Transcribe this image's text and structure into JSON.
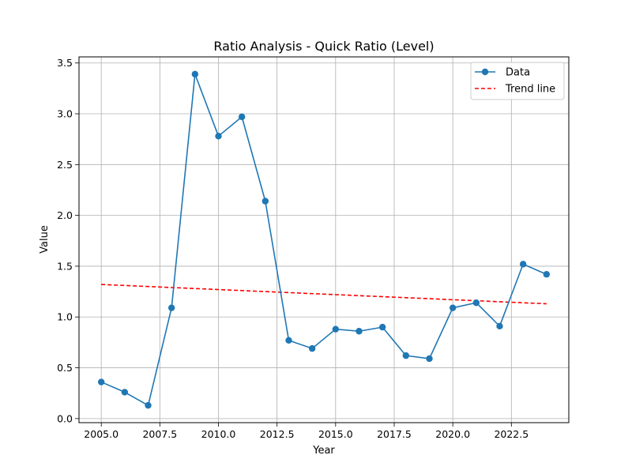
{
  "chart_data": {
    "type": "line",
    "title": "Ratio Analysis - Quick Ratio (Level)",
    "xlabel": "Year",
    "ylabel": "Value",
    "xlim": [
      2004.05,
      2024.95
    ],
    "ylim": [
      -0.04,
      3.56
    ],
    "xticks": [
      2005.0,
      2007.5,
      2010.0,
      2012.5,
      2015.0,
      2017.5,
      2020.0,
      2022.5
    ],
    "xtick_labels": [
      "2005.0",
      "2007.5",
      "2010.0",
      "2012.5",
      "2015.0",
      "2017.5",
      "2020.0",
      "2022.5"
    ],
    "yticks": [
      0.0,
      0.5,
      1.0,
      1.5,
      2.0,
      2.5,
      3.0,
      3.5
    ],
    "ytick_labels": [
      "0.0",
      "0.5",
      "1.0",
      "1.5",
      "2.0",
      "2.5",
      "3.0",
      "3.5"
    ],
    "grid": true,
    "legend_position": "top-right",
    "series": [
      {
        "name": "Data",
        "style": "solid-line-with-circle-markers",
        "color": "#1f77b4",
        "x": [
          2005,
          2006,
          2007,
          2008,
          2009,
          2010,
          2011,
          2012,
          2013,
          2014,
          2015,
          2016,
          2017,
          2018,
          2019,
          2020,
          2021,
          2022,
          2023,
          2024
        ],
        "y": [
          0.36,
          0.26,
          0.13,
          1.09,
          3.39,
          2.78,
          2.97,
          2.14,
          0.77,
          0.69,
          0.88,
          0.86,
          0.9,
          0.62,
          0.59,
          1.09,
          1.14,
          0.91,
          1.52,
          1.42
        ]
      },
      {
        "name": "Trend line",
        "style": "dashed-line",
        "color": "#ff0000",
        "x": [
          2005,
          2024
        ],
        "y": [
          1.32,
          1.13
        ]
      }
    ]
  }
}
